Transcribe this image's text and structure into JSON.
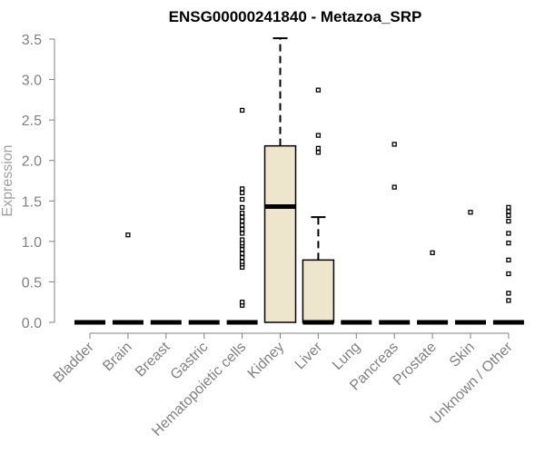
{
  "chart_data": {
    "type": "box",
    "title": "ENSG00000241840 - Metazoa_SRP",
    "xlabel": "",
    "ylabel": "Expression",
    "ylim": [
      0,
      3.5
    ],
    "yticks": [
      "0.0",
      "0.5",
      "1.0",
      "1.5",
      "2.0",
      "2.5",
      "3.0",
      "3.5"
    ],
    "categories": [
      "Bladder",
      "Brain",
      "Breast",
      "Gastric",
      "Hematopoietic cells",
      "Kidney",
      "Liver",
      "Lung",
      "Pancreas",
      "Prostate",
      "Skin",
      "Unknown / Other"
    ],
    "boxes": [
      {
        "category": "Bladder",
        "q1": 0,
        "median": 0,
        "q3": 0,
        "whisker_low": 0,
        "whisker_high": 0,
        "outliers": []
      },
      {
        "category": "Brain",
        "q1": 0,
        "median": 0,
        "q3": 0,
        "whisker_low": 0,
        "whisker_high": 0,
        "outliers": [
          1.08
        ]
      },
      {
        "category": "Breast",
        "q1": 0,
        "median": 0,
        "q3": 0,
        "whisker_low": 0,
        "whisker_high": 0,
        "outliers": []
      },
      {
        "category": "Gastric",
        "q1": 0,
        "median": 0,
        "q3": 0,
        "whisker_low": 0,
        "whisker_high": 0,
        "outliers": []
      },
      {
        "category": "Hematopoietic cells",
        "q1": 0,
        "median": 0,
        "q3": 0,
        "whisker_low": 0,
        "whisker_high": 0,
        "outliers": [
          0.21,
          0.25,
          0.68,
          0.72,
          0.75,
          0.8,
          0.85,
          0.9,
          0.95,
          0.98,
          1.02,
          1.1,
          1.15,
          1.2,
          1.25,
          1.3,
          1.35,
          1.42,
          1.52,
          1.6,
          1.65,
          2.62
        ]
      },
      {
        "category": "Kidney",
        "q1": 0,
        "median": 1.43,
        "q3": 2.18,
        "whisker_low": 0,
        "whisker_high": 3.51,
        "outliers": []
      },
      {
        "category": "Liver",
        "q1": 0,
        "median": 0,
        "q3": 0.77,
        "whisker_low": 0,
        "whisker_high": 1.3,
        "outliers": [
          2.1,
          2.15,
          2.31,
          2.87
        ]
      },
      {
        "category": "Lung",
        "q1": 0,
        "median": 0,
        "q3": 0,
        "whisker_low": 0,
        "whisker_high": 0,
        "outliers": []
      },
      {
        "category": "Pancreas",
        "q1": 0,
        "median": 0,
        "q3": 0,
        "whisker_low": 0,
        "whisker_high": 0,
        "outliers": [
          1.67,
          2.2
        ]
      },
      {
        "category": "Prostate",
        "q1": 0,
        "median": 0,
        "q3": 0,
        "whisker_low": 0,
        "whisker_high": 0,
        "outliers": [
          0.86
        ]
      },
      {
        "category": "Skin",
        "q1": 0,
        "median": 0,
        "q3": 0,
        "whisker_low": 0,
        "whisker_high": 0,
        "outliers": [
          1.36
        ]
      },
      {
        "category": "Unknown / Other",
        "q1": 0,
        "median": 0,
        "q3": 0,
        "whisker_low": 0,
        "whisker_high": 0,
        "outliers": [
          0.27,
          0.36,
          0.6,
          0.77,
          0.98,
          1.1,
          1.25,
          1.32,
          1.37,
          1.42
        ]
      }
    ],
    "box_fill": "#ede6cc",
    "line_color": "#000000",
    "axis_color": "#808080"
  }
}
